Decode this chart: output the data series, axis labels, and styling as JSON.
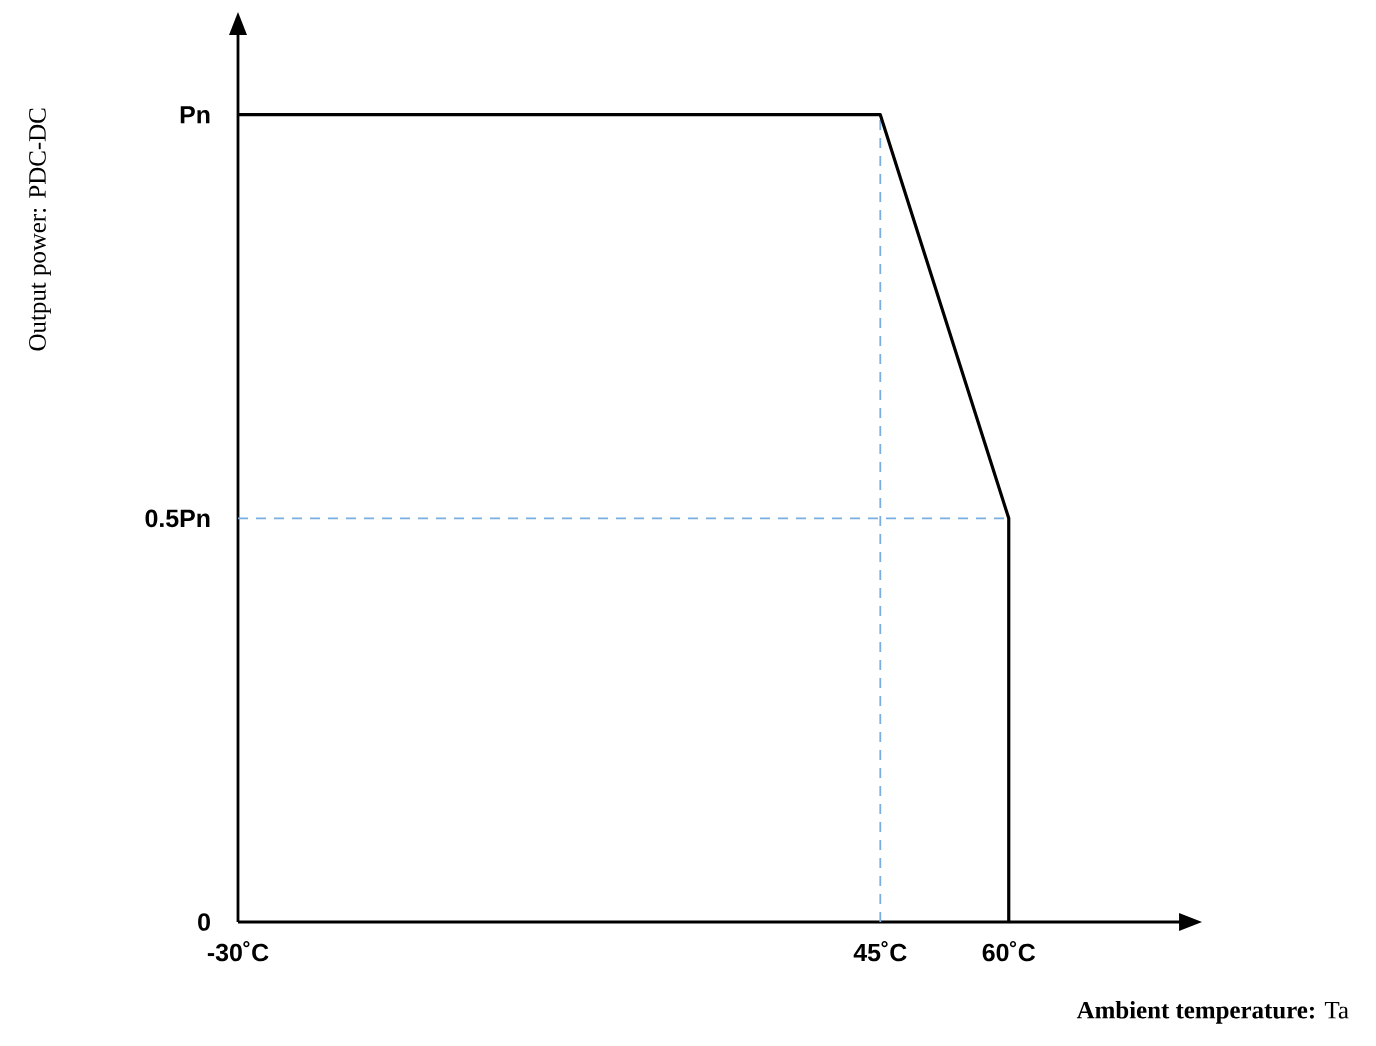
{
  "chart_data": {
    "type": "line",
    "xlabel": "**Ambient temperature:** Ta",
    "ylabel": "Output power: PDC-DC",
    "xlim": [
      -30,
      80
    ],
    "ylim": [
      0,
      1.1
    ],
    "xticks": [
      {
        "value": -30,
        "label": "-30˚C"
      },
      {
        "value": 45,
        "label": "45˚C"
      },
      {
        "value": 60,
        "label": "60˚C"
      }
    ],
    "yticks": [
      {
        "value": 0,
        "label": "0"
      },
      {
        "value": 0.5,
        "label": "0.5Pn"
      },
      {
        "value": 1,
        "label": "Pn"
      }
    ],
    "series": [
      {
        "color": "#000000",
        "x": [
          -30,
          45,
          60,
          60
        ],
        "values": [
          1,
          1,
          0.5,
          0
        ]
      }
    ],
    "ref_lines": [
      {
        "axis": "x",
        "value": 45,
        "color": "#7aaee0",
        "line_style": "dashed"
      },
      {
        "axis": "y",
        "value": 0.5,
        "color": "#7aaee0",
        "line_style": "dashed"
      }
    ],
    "grid": false,
    "marker": "none",
    "line_style": "solid"
  }
}
